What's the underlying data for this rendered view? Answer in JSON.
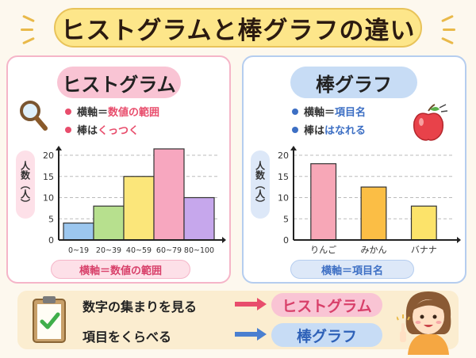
{
  "title": "ヒストグラムと棒グラフの違い",
  "histogram": {
    "heading": "ヒストグラム",
    "bullet1_label": "横軸＝",
    "bullet1_value": "数値の範囲",
    "bullet2_label": "棒は",
    "bullet2_value": "くっつく",
    "ylabel": "人数（人）",
    "footer": "横軸＝数値の範囲"
  },
  "bargraph": {
    "heading": "棒グラフ",
    "bullet1_label": "横軸＝",
    "bullet1_value": "項目名",
    "bullet2_label": "棒は",
    "bullet2_value": "はなれる",
    "ylabel": "人数（人）",
    "footer": "横軸＝項目名"
  },
  "summary": {
    "row1_text": "数字の集まりを見る",
    "row1_result": "ヒストグラム",
    "row2_text": "項目をくらべる",
    "row2_result": "棒グラフ"
  },
  "colors": {
    "pink": "#f48fb1",
    "blue": "#5b8ed6",
    "accent_red": "#e84d6c",
    "accent_blue": "#3d6fc4"
  },
  "icons": [
    "magnifier-icon",
    "apple-icon",
    "clipboard-check-icon",
    "girl-pointing-icon",
    "arrow-right-icon"
  ],
  "chart_data": [
    {
      "type": "bar",
      "categories": [
        "0~19",
        "20~39",
        "40~59",
        "60~79",
        "80~100"
      ],
      "values": [
        4,
        8,
        15,
        21.5,
        10
      ],
      "colors": [
        "#9cc7ef",
        "#b7e08e",
        "#fbe67a",
        "#f7a7bf",
        "#c6a7ec"
      ],
      "ylabel": "人数（人）",
      "ylim": [
        0,
        20
      ],
      "yticks": [
        0,
        5,
        10,
        15,
        20
      ],
      "grid": true
    },
    {
      "type": "bar",
      "categories": [
        "りんご",
        "みかん",
        "バナナ"
      ],
      "values": [
        18,
        12.5,
        8
      ],
      "colors": [
        "#f7a7b7",
        "#fbbe45",
        "#fce36a"
      ],
      "ylabel": "人数（人）",
      "ylim": [
        0,
        20
      ],
      "yticks": [
        0,
        5,
        10,
        15,
        20
      ],
      "grid": true
    }
  ]
}
